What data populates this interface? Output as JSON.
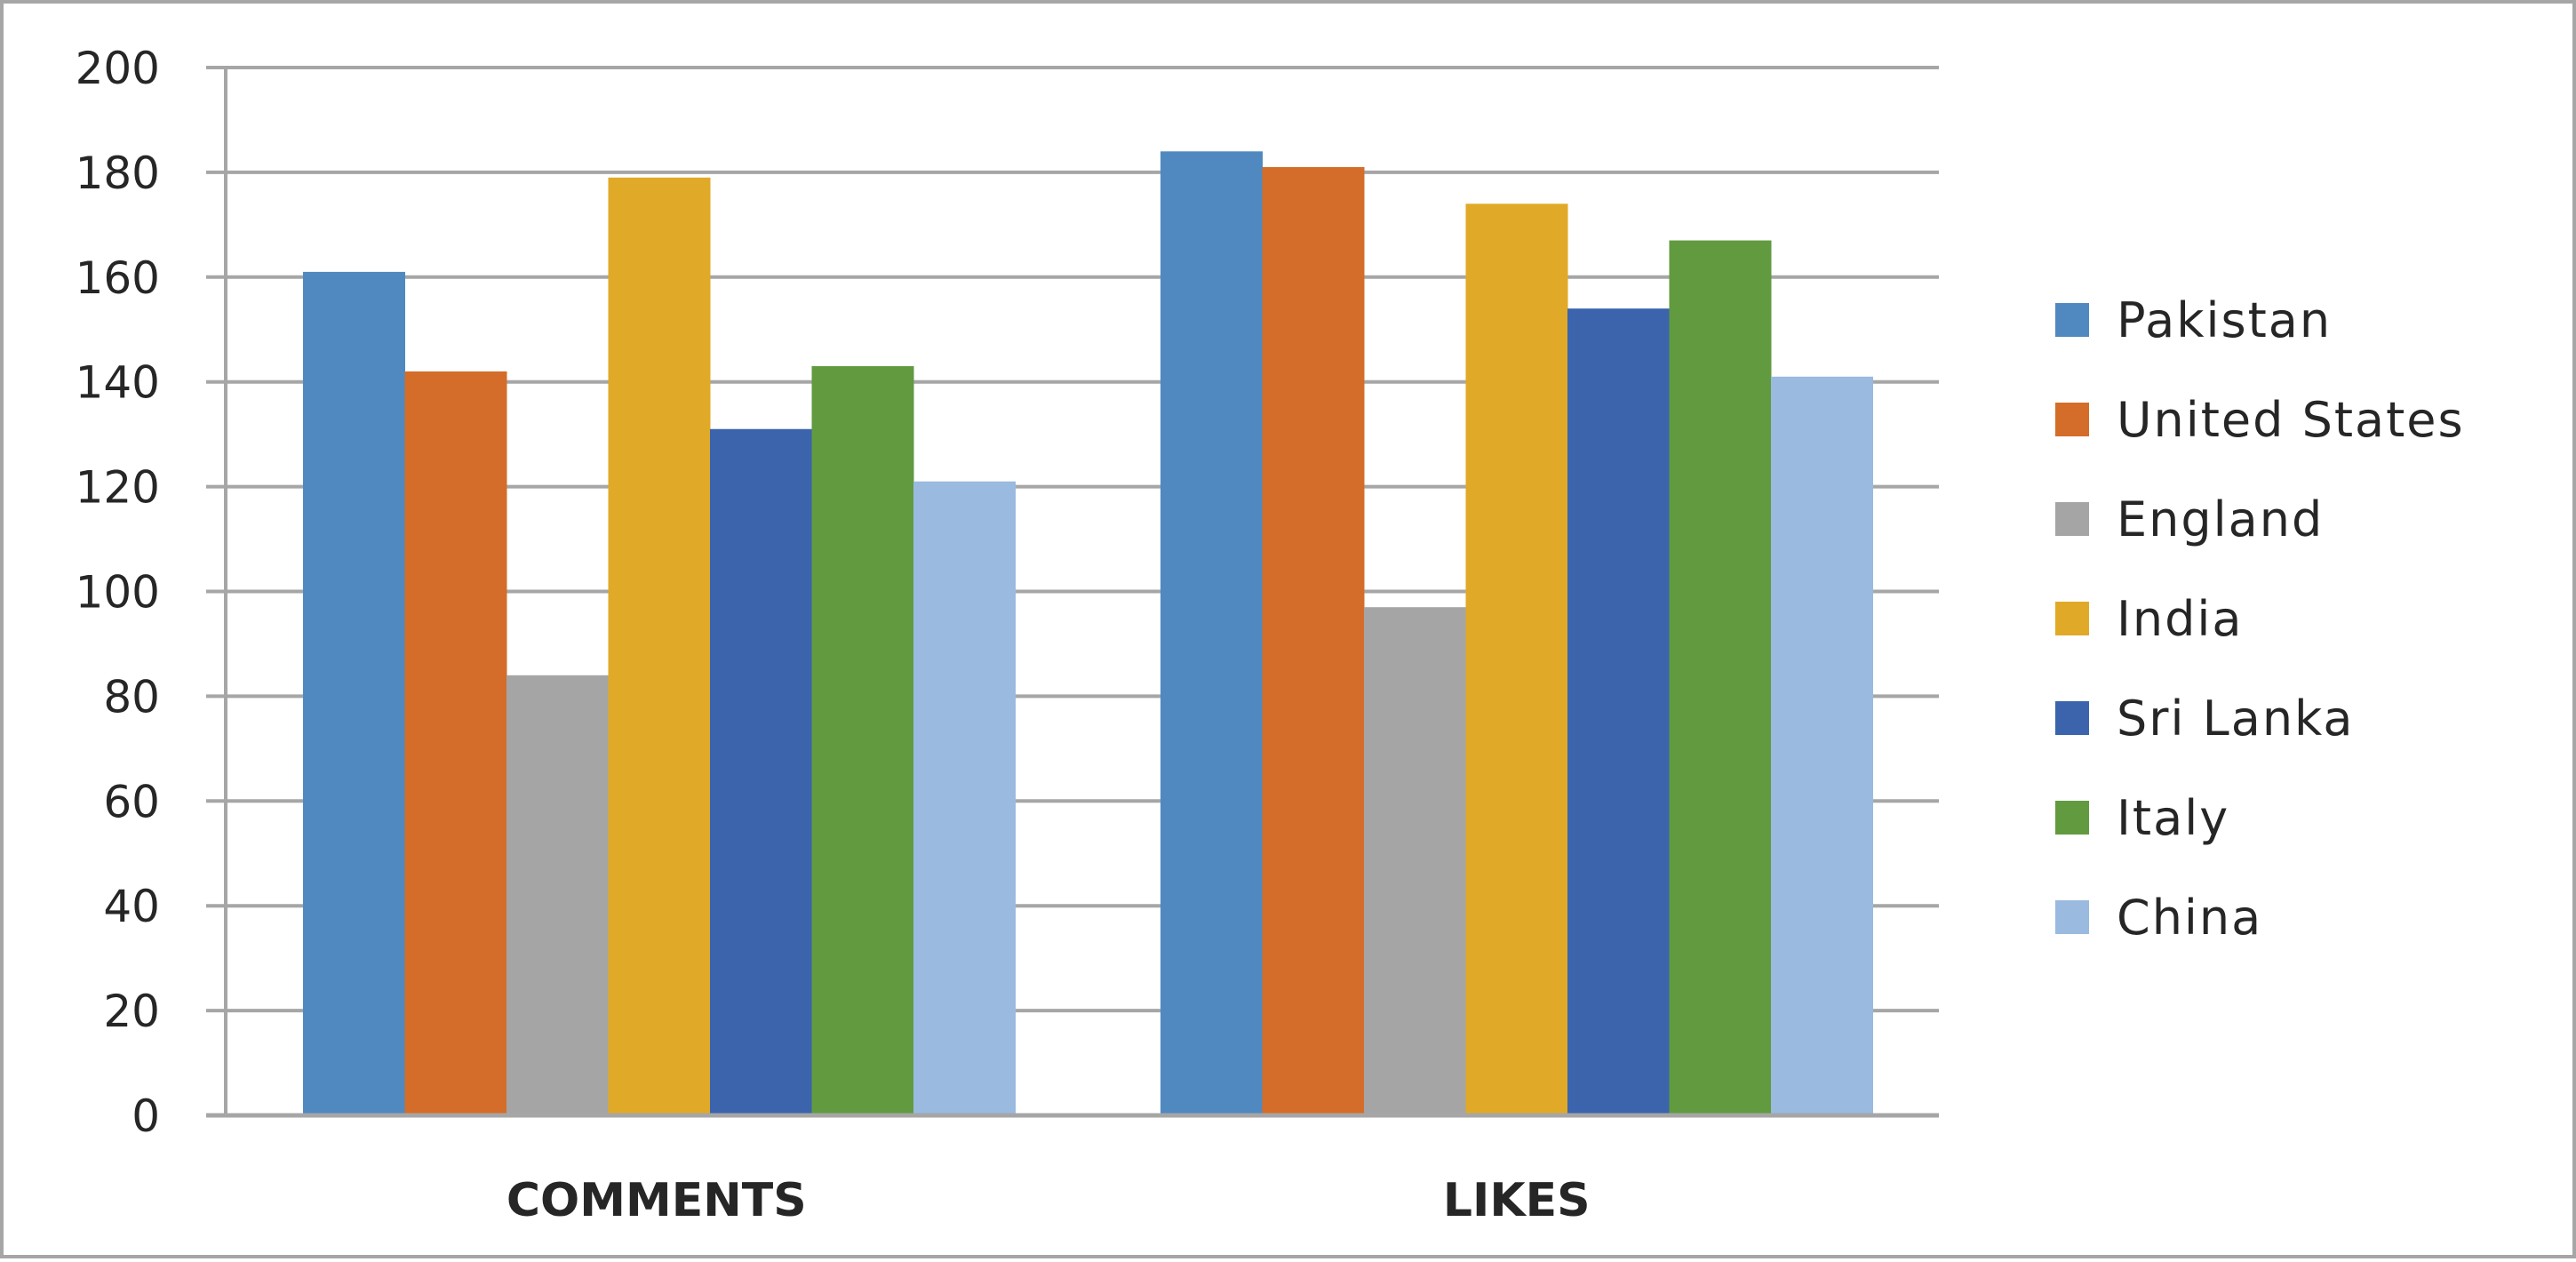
{
  "chart_data": {
    "type": "bar",
    "title": "",
    "xlabel": "",
    "ylabel": "",
    "categories": [
      "COMMENTS",
      "LIKES"
    ],
    "series": [
      {
        "name": "Pakistan",
        "values": [
          161,
          184
        ],
        "color": "#4f89c0"
      },
      {
        "name": "United States",
        "values": [
          142,
          181
        ],
        "color": "#d46d29"
      },
      {
        "name": "England",
        "values": [
          84,
          97
        ],
        "color": "#a5a5a5"
      },
      {
        "name": "India",
        "values": [
          179,
          174
        ],
        "color": "#e0aa28"
      },
      {
        "name": "Sri Lanka",
        "values": [
          131,
          154
        ],
        "color": "#3b64ad"
      },
      {
        "name": "Italy",
        "values": [
          143,
          167
        ],
        "color": "#629a40"
      },
      {
        "name": "China",
        "values": [
          121,
          141
        ],
        "color": "#9abae0"
      }
    ],
    "ylim": [
      0,
      200
    ],
    "yticks": [
      0,
      20,
      40,
      60,
      80,
      100,
      120,
      140,
      160,
      180,
      200
    ],
    "grid": true,
    "legend": "right"
  }
}
